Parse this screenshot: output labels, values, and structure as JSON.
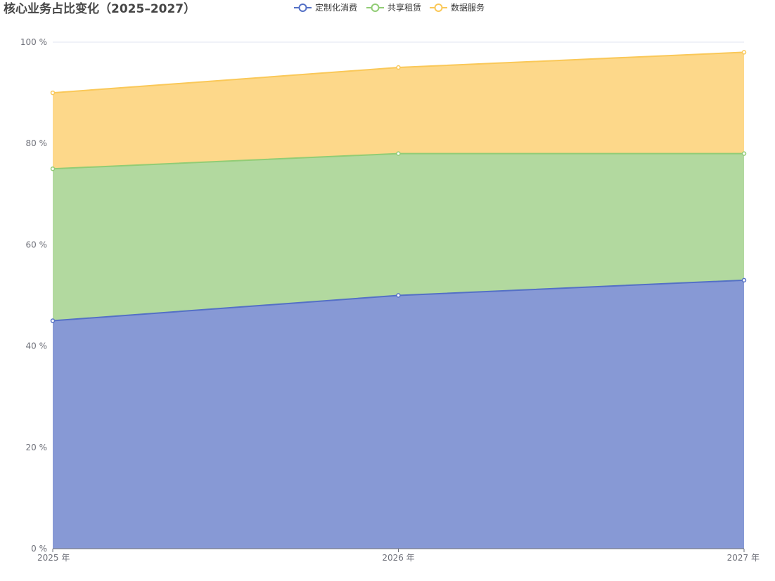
{
  "chart_data": {
    "type": "area",
    "stacked": true,
    "title": "核心业务占比变化（2025–2027）",
    "categories": [
      "2025 年",
      "2026 年",
      "2027 年"
    ],
    "series": [
      {
        "name": "定制化消费",
        "values": [
          45,
          50,
          53
        ],
        "color": "#5470c6",
        "fill": "#8799d5"
      },
      {
        "name": "共享租赁",
        "values": [
          30,
          28,
          25
        ],
        "color": "#91cc75",
        "fill": "#b2d99f"
      },
      {
        "name": "数据服务",
        "values": [
          15,
          17,
          20
        ],
        "color": "#fac858",
        "fill": "#fdd88a"
      }
    ],
    "y_ticks": [
      "0 %",
      "20 %",
      "40 %",
      "60 %",
      "80 %",
      "100 %"
    ],
    "ylim": [
      0,
      100
    ],
    "legend_position": "top-center",
    "grid": true
  }
}
